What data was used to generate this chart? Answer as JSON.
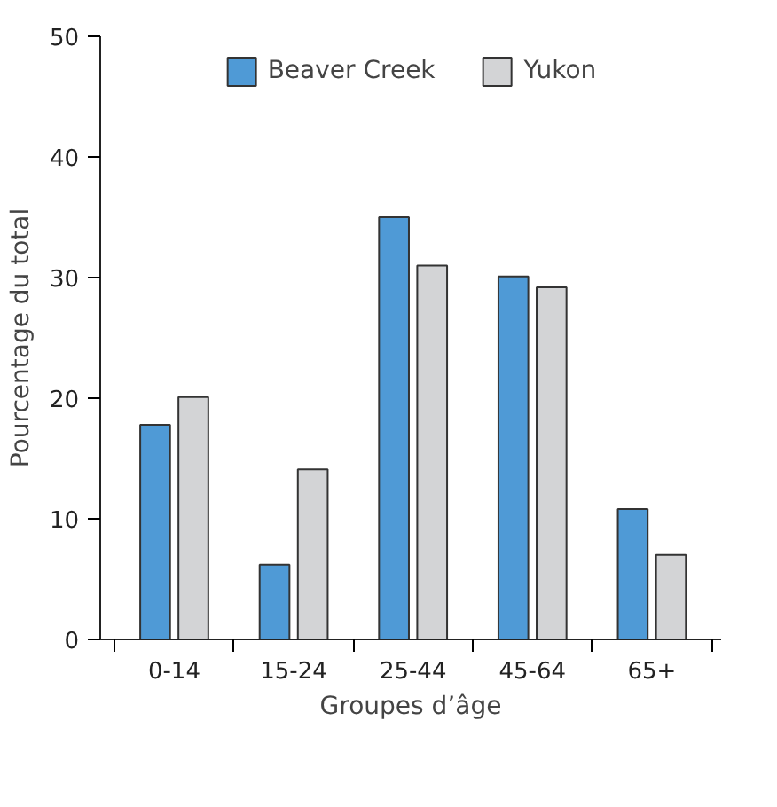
{
  "chart_data": {
    "type": "bar",
    "xlabel": "Groupes d’âge",
    "ylabel": "Pourcentage du total",
    "categories": [
      "0-14",
      "15-24",
      "25-44",
      "45-64",
      "65+"
    ],
    "series": [
      {
        "name": "Beaver Creek",
        "color": "#4f9ad6",
        "values": [
          17.8,
          6.2,
          35.0,
          30.1,
          10.8
        ]
      },
      {
        "name": "Yukon",
        "color": "#d3d4d6",
        "values": [
          20.1,
          14.1,
          31.0,
          29.2,
          7.0
        ]
      }
    ],
    "ylim": [
      0,
      50
    ],
    "yticks": [
      0,
      10,
      20,
      30,
      40,
      50
    ],
    "grid": false,
    "legend": "top"
  }
}
